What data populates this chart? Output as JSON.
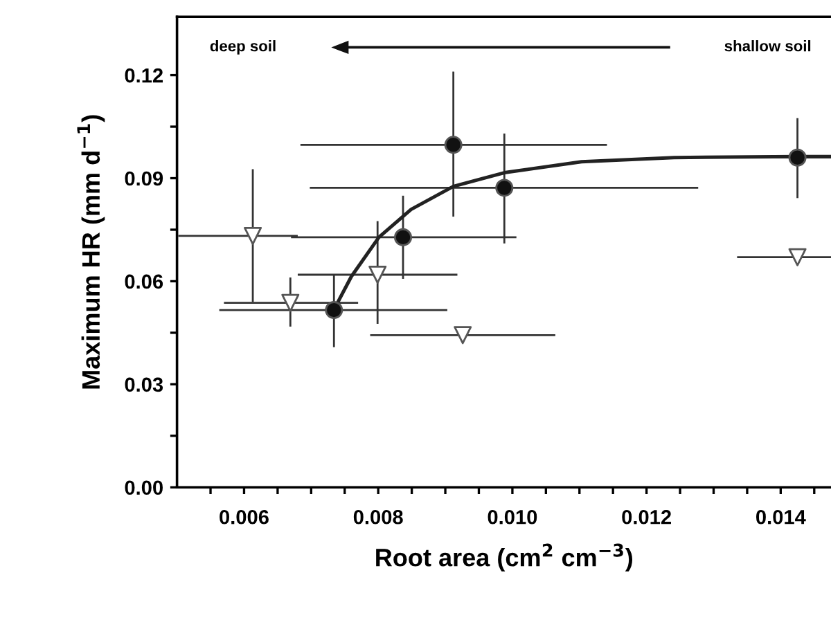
{
  "chart_data": {
    "type": "scatter",
    "xlabel": "Root area (cm$^{2}$ cm$^{−3}$)",
    "ylabel": "Maximum HR (mm d$^{−1}$)",
    "annotations": [
      "deep soil",
      "shallow soil"
    ],
    "xlim": [
      0.005,
      0.01475
    ],
    "ylim": [
      0,
      0.137
    ],
    "xticks": [
      {
        "value": 0.0055,
        "label": null
      },
      0.006,
      {
        "value": 0.0065,
        "label": null
      },
      {
        "value": 0.007,
        "label": null
      },
      {
        "value": 0.0075,
        "label": null
      },
      0.008,
      {
        "value": 0.0085,
        "label": null
      },
      {
        "value": 0.009,
        "label": null
      },
      {
        "value": 0.0095,
        "label": null
      },
      {
        "value": 0.01,
        "label": "0.010"
      },
      {
        "value": 0.0105,
        "label": null
      },
      {
        "value": 0.011,
        "label": null
      },
      {
        "value": 0.0115,
        "label": null
      },
      0.012,
      {
        "value": 0.0125,
        "label": null
      },
      {
        "value": 0.013,
        "label": null
      },
      {
        "value": 0.0135,
        "label": null
      },
      0.014,
      {
        "value": 0.0145,
        "label": null
      }
    ],
    "yticks": [
      {
        "value": 0,
        "label": "0.00"
      },
      {
        "value": 0.015,
        "label": null
      },
      0.03,
      {
        "value": 0.045,
        "label": null
      },
      0.06,
      {
        "value": 0.075,
        "label": null
      },
      0.09,
      {
        "value": 0.105,
        "label": null
      },
      0.12
    ],
    "grid": false,
    "legend": false,
    "series": [
      {
        "marker": "circle",
        "color": "#111111",
        "x": [
          0.00734,
          0.00837,
          0.00912,
          0.00988,
          0.01425
        ],
        "values": [
          0.0516,
          0.0728,
          0.0997,
          0.0872,
          0.096
        ],
        "errors": [
          [
            0.0408,
            0.062
          ],
          [
            0.0607,
            0.0849
          ],
          [
            0.0788,
            0.121
          ],
          [
            0.071,
            0.103
          ],
          [
            0.0842,
            0.1075
          ]
        ],
        "xerrors": [
          [
            0.00563,
            0.00903
          ],
          [
            0.0067,
            0.01006
          ],
          [
            0.00684,
            0.01141
          ],
          [
            0.00698,
            0.01277
          ],
          [
            0.0136,
            0.01475
          ]
        ]
      },
      {
        "marker": "triangle",
        "color": "#ffffff",
        "x": [
          0.00613,
          0.00669,
          0.00799,
          0.00926,
          0.01425
        ],
        "values": [
          0.0732,
          0.0537,
          0.0619,
          0.0443,
          0.067
        ],
        "errors": [
          [
            0.054,
            0.0926
          ],
          [
            0.0468,
            0.0611
          ],
          [
            0.0476,
            0.0775
          ],
          null,
          null
        ],
        "xerrors": [
          [
            0.00502,
            0.0068
          ],
          [
            0.0057,
            0.0077
          ],
          [
            0.0068,
            0.00918
          ],
          [
            0.00788,
            0.01064
          ],
          [
            0.01335,
            0.01475
          ]
        ]
      },
      {
        "type": "line",
        "line_style": "solid",
        "color": "#222222",
        "x": [
          0.00739,
          0.0076,
          0.00801,
          0.00849,
          0.00912,
          0.00988,
          0.01103,
          0.01241,
          0.01425,
          0.01475
        ],
        "values": [
          0.0536,
          0.0614,
          0.0728,
          0.0809,
          0.0876,
          0.0916,
          0.0948,
          0.096,
          0.0963,
          0.0963
        ]
      }
    ]
  }
}
